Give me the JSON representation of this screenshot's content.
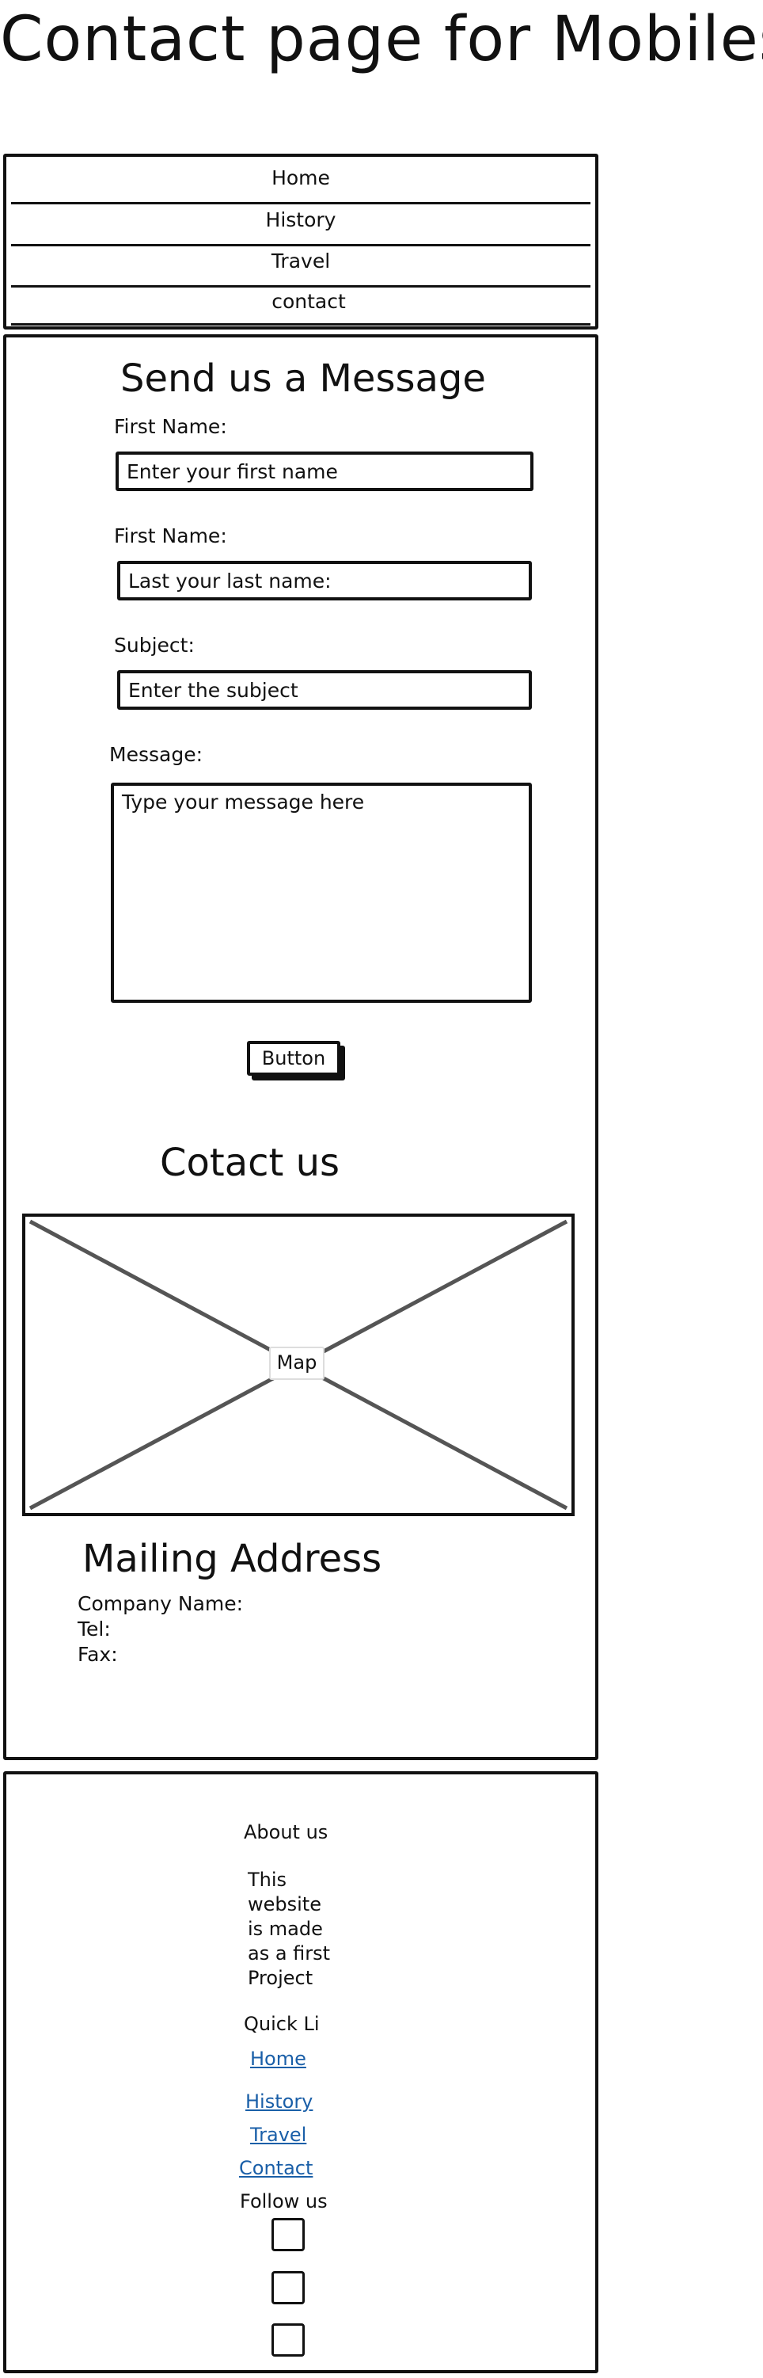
{
  "page": {
    "title": "Contact page for Mobiles"
  },
  "nav": {
    "items": [
      "Home",
      "History",
      "Travel",
      "contact"
    ]
  },
  "form": {
    "heading": "Send us a Message",
    "first_name_label": "First Name:",
    "first_name_placeholder": "Enter your first name",
    "last_name_label": "First Name:",
    "last_name_placeholder": "Last your last name:",
    "subject_label": "Subject:",
    "subject_placeholder": "Enter the subject",
    "message_label": "Message:",
    "message_placeholder": "Type your message here",
    "submit_label": "Button"
  },
  "contact": {
    "heading": "Cotact us",
    "map_label": "Map",
    "mailing_heading": "Mailing Address",
    "company_label": "Company Name:",
    "tel_label": "Tel:",
    "fax_label": "Fax:"
  },
  "footer": {
    "about_heading": "About us",
    "about_text": [
      "This",
      "website",
      "is made",
      "as a first",
      "Project"
    ],
    "quick_links_heading": "Quick Li",
    "links": [
      "Home",
      "History",
      "Travel",
      "Contact"
    ],
    "follow_heading": "Follow us"
  }
}
